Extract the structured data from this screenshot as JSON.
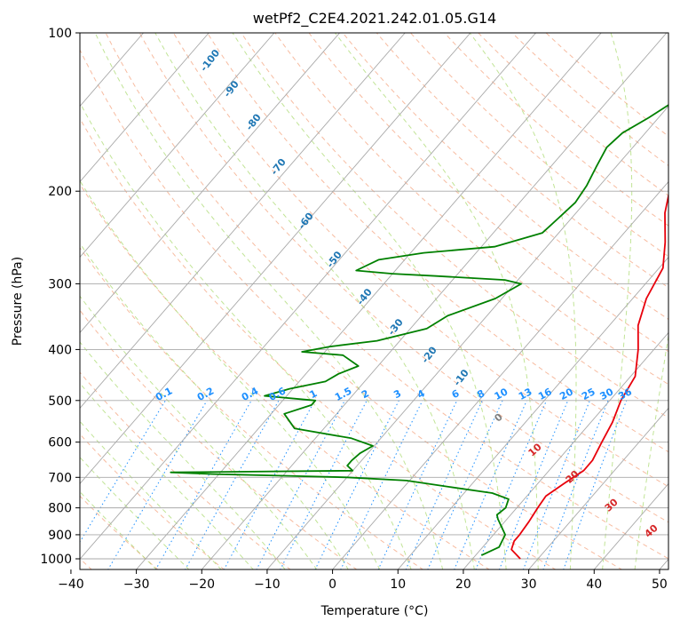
{
  "chart_data": {
    "type": "line",
    "diagram": "skew-T log-P",
    "title": "wetPf2_C2E4.2021.242.01.05.G14",
    "xlabel": "Temperature (°C)",
    "ylabel": "Pressure (hPa)",
    "xlim": [
      -40,
      50
    ],
    "ylim": [
      1050,
      100
    ],
    "y_scale": "log",
    "grid": true,
    "x_ticks": [
      "−40",
      "−30",
      "−20",
      "−10",
      "0",
      "10",
      "20",
      "30",
      "40",
      "50"
    ],
    "y_ticks": [
      "100",
      "200",
      "300",
      "400",
      "500",
      "600",
      "700",
      "800",
      "900",
      "1000"
    ],
    "series": [
      {
        "color": "#e8000b",
        "values": [
          [
            1000,
            27.3
          ],
          [
            960,
            24.7
          ],
          [
            925,
            24.0
          ],
          [
            900,
            24.0
          ],
          [
            850,
            23.7
          ],
          [
            800,
            23.2
          ],
          [
            760,
            22.9
          ],
          [
            720,
            24.0
          ],
          [
            680,
            25.3
          ],
          [
            650,
            25.3
          ],
          [
            600,
            24.3
          ],
          [
            550,
            23.3
          ],
          [
            500,
            21.7
          ],
          [
            450,
            20.7
          ],
          [
            400,
            17.6
          ],
          [
            360,
            14.4
          ],
          [
            320,
            12.1
          ],
          [
            280,
            10.6
          ],
          [
            250,
            7.5
          ],
          [
            220,
            3.6
          ],
          [
            200,
            1.4
          ],
          [
            180,
            -0.7
          ],
          [
            165,
            -1.7
          ],
          [
            150,
            -2.6
          ],
          [
            140,
            -3.7
          ],
          [
            135,
            -4.7
          ],
          [
            130,
            -5.8
          ],
          [
            124,
            -6.4
          ],
          [
            118,
            -5.2
          ],
          [
            110,
            -3.4
          ],
          [
            100,
            -1.5
          ]
        ]
      },
      {
        "color": "#008000",
        "values": [
          [
            985,
            20.9
          ],
          [
            950,
            22.5
          ],
          [
            900,
            21.8
          ],
          [
            840,
            18.6
          ],
          [
            825,
            17.9
          ],
          [
            800,
            18.3
          ],
          [
            770,
            17.6
          ],
          [
            750,
            14.3
          ],
          [
            730,
            7.0
          ],
          [
            710,
            -0.5
          ],
          [
            700,
            -10.0
          ],
          [
            695,
            -20.0
          ],
          [
            690,
            -31.0
          ],
          [
            685,
            -37.6
          ],
          [
            680,
            -10.0
          ],
          [
            665,
            -11.5
          ],
          [
            650,
            -11.5
          ],
          [
            630,
            -11.2
          ],
          [
            610,
            -10.2
          ],
          [
            590,
            -14.5
          ],
          [
            565,
            -24.5
          ],
          [
            530,
            -28.0
          ],
          [
            510,
            -25.0
          ],
          [
            500,
            -25.0
          ],
          [
            490,
            -33.4
          ],
          [
            475,
            -30.5
          ],
          [
            460,
            -26.0
          ],
          [
            445,
            -25.0
          ],
          [
            430,
            -23.0
          ],
          [
            410,
            -26.8
          ],
          [
            404,
            -33.5
          ],
          [
            395,
            -30.0
          ],
          [
            385,
            -23.5
          ],
          [
            365,
            -17.5
          ],
          [
            345,
            -16.0
          ],
          [
            320,
            -11.0
          ],
          [
            300,
            -9.0
          ],
          [
            295,
            -12.0
          ],
          [
            290,
            -23.0
          ],
          [
            287,
            -30.0
          ],
          [
            283,
            -36.0
          ],
          [
            270,
            -34.0
          ],
          [
            262,
            -28.0
          ],
          [
            255,
            -18.0
          ],
          [
            240,
            -12.5
          ],
          [
            225,
            -12.0
          ],
          [
            210,
            -11.5
          ],
          [
            195,
            -12.0
          ],
          [
            180,
            -13.0
          ],
          [
            165,
            -14.0
          ],
          [
            155,
            -13.5
          ],
          [
            145,
            -11.5
          ],
          [
            135,
            -9.8
          ],
          [
            120,
            -9.0
          ],
          [
            110,
            -8.0
          ],
          [
            100,
            -7.5
          ]
        ]
      }
    ],
    "dry_adiabats_c": [
      -100,
      -90,
      -80,
      -70,
      -60,
      -50,
      -40,
      -30,
      -20,
      -10
    ],
    "moist_adiabats_c": [
      0,
      10,
      20,
      30,
      40
    ],
    "mixing_ratio_g_kg": [
      "0.1",
      "0.2",
      "0.4",
      "0.6",
      "1",
      "1.5",
      "2",
      "3",
      "4",
      "6",
      "8",
      "10",
      "13",
      "16",
      "20",
      "25",
      "30",
      "36"
    ],
    "colors": {
      "isotherm": "#a9a9a9",
      "isobar": "#a9a9a9",
      "dry_adiabat_line": "#f4a582",
      "dry_adiabat_label": "#1f77b4",
      "moist_adiabat_line": "#a6d96a",
      "moist_adiabat_label": "#d62728",
      "mixing_ratio": "#1e90ff",
      "zero_label": "#808080"
    }
  }
}
